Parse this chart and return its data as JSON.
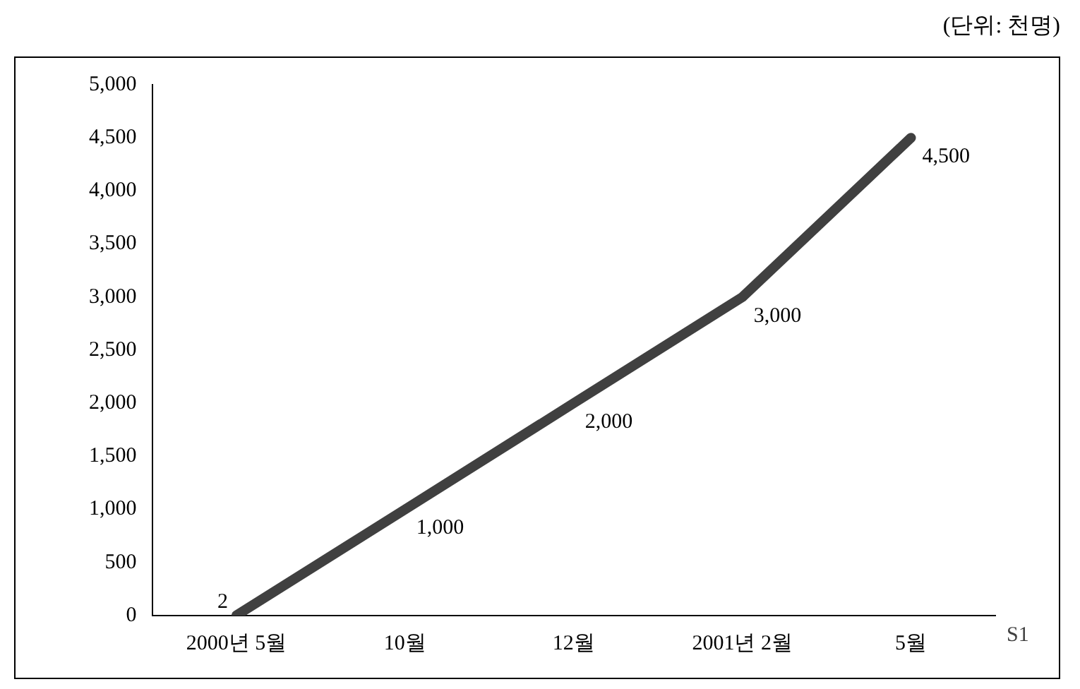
{
  "chart_data": {
    "type": "line",
    "annotations": [
      "(단위: 천명)"
    ],
    "categories": [
      "2000년 5월",
      "10월",
      "12월",
      "2001년 2월",
      "5월"
    ],
    "series": [
      {
        "name": "S1",
        "color": "#404040",
        "values": [
          2,
          1000,
          2000,
          3000,
          4500
        ],
        "value_labels": [
          "2",
          "1,000",
          "2,000",
          "3,000",
          "4,500"
        ]
      }
    ],
    "ylim": [
      0,
      5000
    ],
    "yticks": [
      {
        "value": 0,
        "label": "0"
      },
      {
        "value": 500,
        "label": "500"
      },
      {
        "value": 1000,
        "label": "1,000"
      },
      {
        "value": 1500,
        "label": "1,500"
      },
      {
        "value": 2000,
        "label": "2,000"
      },
      {
        "value": 2500,
        "label": "2,500"
      },
      {
        "value": 3000,
        "label": "3,000"
      },
      {
        "value": 3500,
        "label": "3,500"
      },
      {
        "value": 4000,
        "label": "4,000"
      },
      {
        "value": 4500,
        "label": "4,500"
      },
      {
        "value": 5000,
        "label": "5,000"
      }
    ],
    "grid": false,
    "legend": false,
    "marker": "none",
    "line_style": "solid"
  }
}
